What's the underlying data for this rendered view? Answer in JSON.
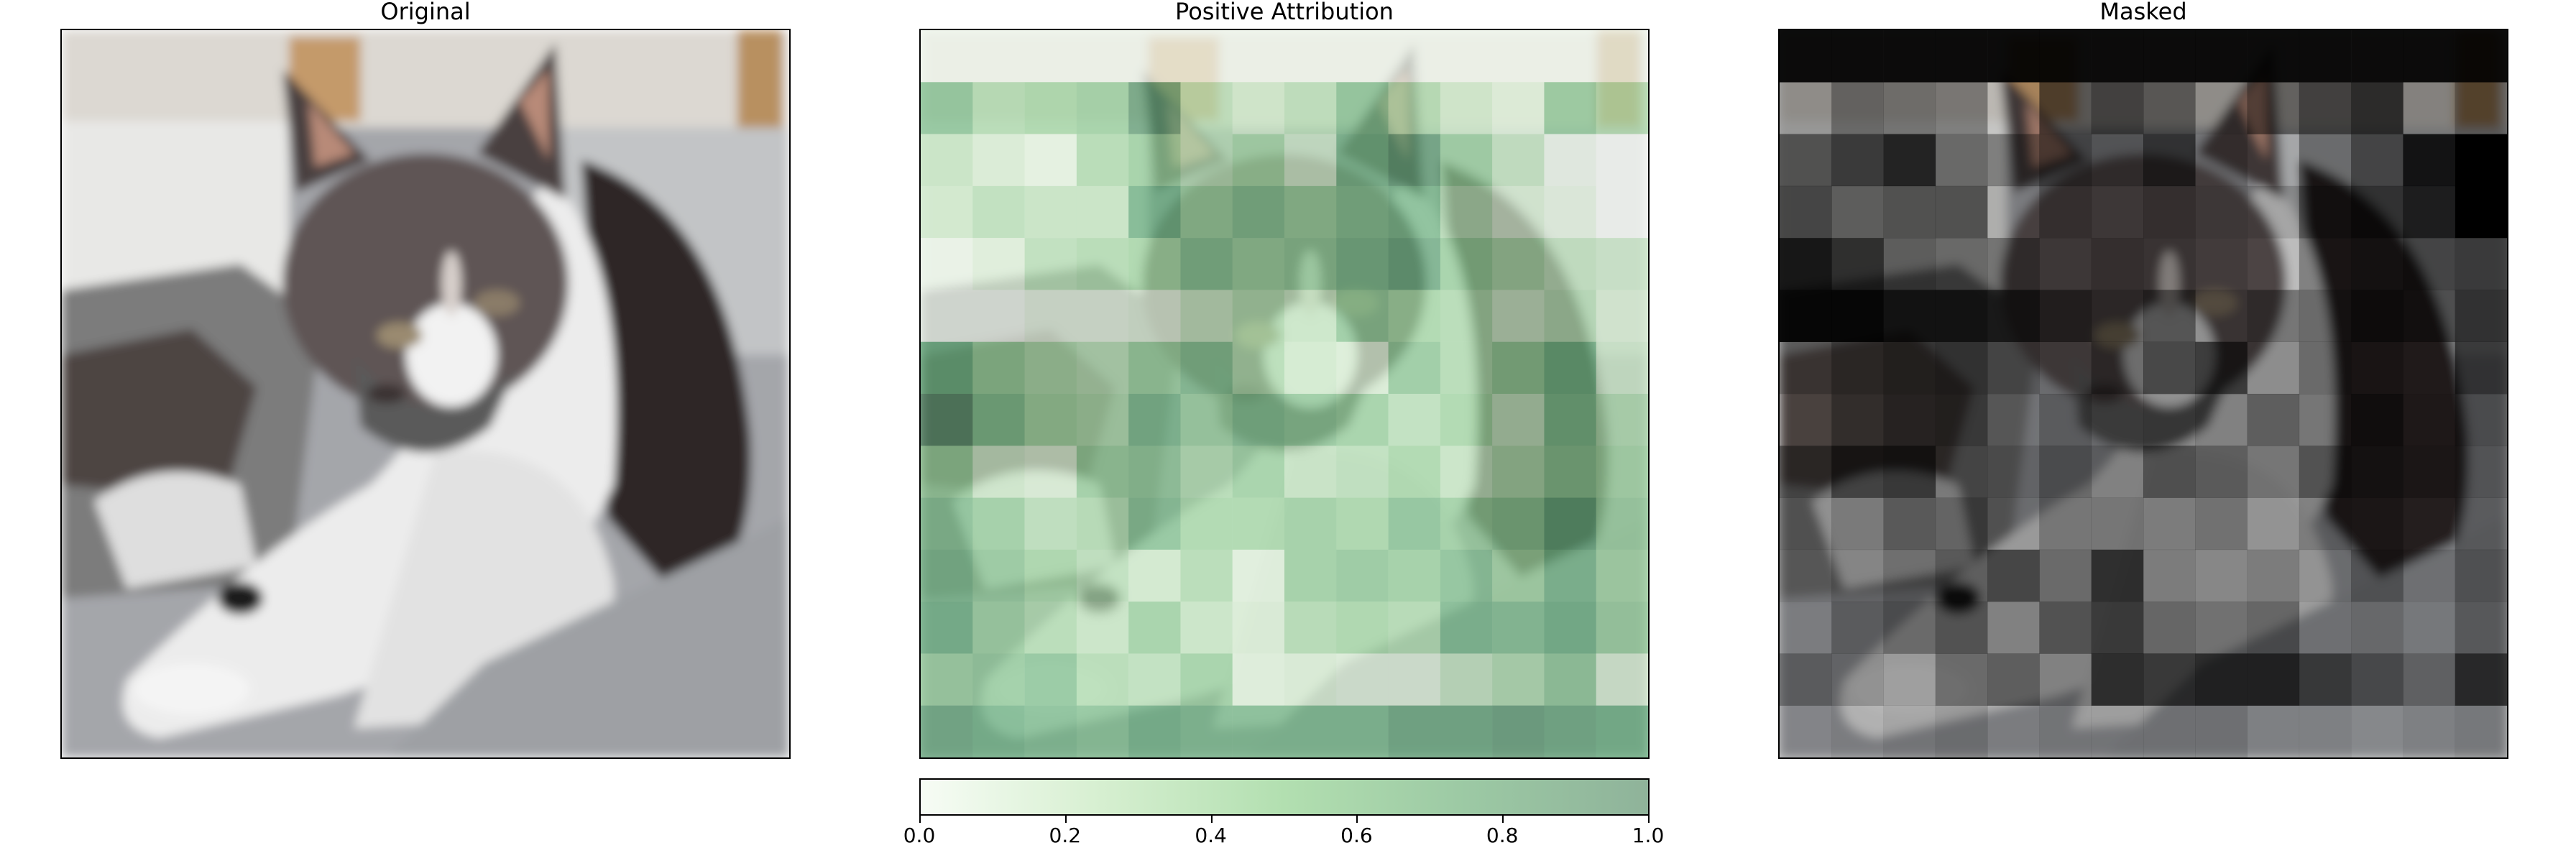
{
  "panels": [
    {
      "title": "Original"
    },
    {
      "title": "Positive Attribution"
    },
    {
      "title": "Masked"
    }
  ],
  "colorbar": {
    "colormap": "Greens",
    "min": 0.0,
    "max": 1.0,
    "ticks": [
      "0.0",
      "0.2",
      "0.4",
      "0.6",
      "0.8",
      "1.0"
    ]
  },
  "grid": {
    "rows": 14,
    "cols": 14
  },
  "attribution": [
    [
      0.05,
      0.05,
      0.05,
      0.05,
      0.05,
      0.05,
      0.05,
      0.05,
      0.05,
      0.05,
      0.05,
      0.05,
      0.05,
      0.05
    ],
    [
      0.65,
      0.45,
      0.5,
      0.55,
      0.85,
      0.4,
      0.3,
      0.4,
      0.65,
      0.45,
      0.3,
      0.2,
      0.6,
      0.45
    ],
    [
      0.35,
      0.25,
      0.15,
      0.45,
      0.55,
      0.4,
      0.5,
      0.3,
      0.7,
      0.85,
      0.55,
      0.35,
      0.1,
      0.0
    ],
    [
      0.3,
      0.4,
      0.35,
      0.35,
      0.75,
      0.55,
      0.65,
      0.55,
      0.65,
      0.7,
      0.4,
      0.25,
      0.15,
      0.0
    ],
    [
      0.1,
      0.2,
      0.4,
      0.45,
      0.5,
      0.65,
      0.55,
      0.6,
      0.7,
      0.8,
      0.55,
      0.45,
      0.35,
      0.3
    ],
    [
      0.05,
      0.05,
      0.15,
      0.15,
      0.2,
      0.35,
      0.45,
      0.35,
      0.6,
      0.5,
      0.45,
      0.3,
      0.4,
      0.25
    ],
    [
      0.75,
      0.55,
      0.45,
      0.4,
      0.55,
      0.65,
      0.45,
      0.3,
      0.25,
      0.6,
      0.45,
      0.55,
      0.7,
      0.3
    ],
    [
      0.95,
      0.65,
      0.5,
      0.45,
      0.7,
      0.55,
      0.65,
      0.6,
      0.55,
      0.4,
      0.5,
      0.35,
      0.65,
      0.45
    ],
    [
      0.55,
      0.3,
      0.25,
      0.55,
      0.6,
      0.45,
      0.55,
      0.35,
      0.4,
      0.5,
      0.35,
      0.45,
      0.6,
      0.5
    ],
    [
      0.65,
      0.55,
      0.4,
      0.45,
      0.65,
      0.5,
      0.5,
      0.55,
      0.5,
      0.65,
      0.55,
      0.6,
      0.8,
      0.55
    ],
    [
      0.7,
      0.6,
      0.5,
      0.4,
      0.3,
      0.45,
      0.2,
      0.55,
      0.6,
      0.55,
      0.65,
      0.5,
      0.7,
      0.5
    ],
    [
      0.75,
      0.55,
      0.45,
      0.35,
      0.55,
      0.35,
      0.25,
      0.45,
      0.5,
      0.45,
      0.7,
      0.65,
      0.75,
      0.55
    ],
    [
      0.55,
      0.6,
      0.65,
      0.45,
      0.4,
      0.55,
      0.2,
      0.25,
      0.2,
      0.2,
      0.35,
      0.45,
      0.6,
      0.25
    ],
    [
      0.8,
      0.75,
      0.7,
      0.65,
      0.75,
      0.7,
      0.7,
      0.7,
      0.7,
      0.8,
      0.8,
      0.85,
      0.8,
      0.75
    ]
  ]
}
